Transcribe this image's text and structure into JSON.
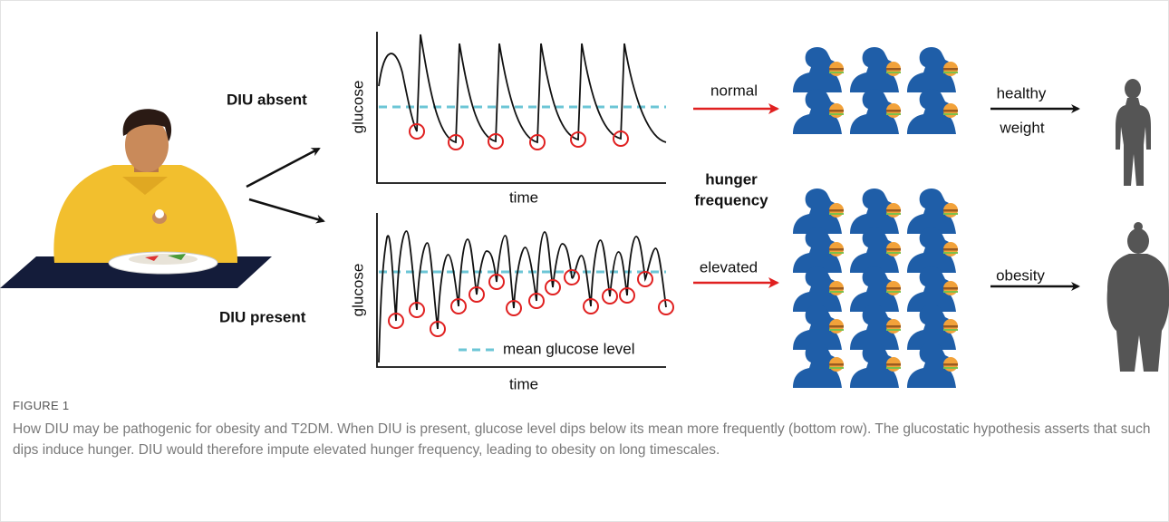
{
  "figure": {
    "labels": {
      "diu_absent": "DIU absent",
      "diu_present": "DIU present",
      "glucose_top": "glucose",
      "glucose_bottom": "glucose",
      "time_top": "time",
      "time_bottom": "time",
      "hunger_1": "hunger",
      "hunger_2": "frequency",
      "normal": "normal",
      "elevated": "elevated",
      "healthy": "healthy",
      "weight": "weight",
      "obesity": "obesity",
      "mean_legend": "mean glucose level"
    },
    "caption": {
      "label": "FIGURE 1",
      "text": "How DIU may be pathogenic for obesity and T2DM. When DIU is present, glucose level dips below its mean more frequently (bottom row). The glucostatic hypothesis asserts that such dips induce hunger. DIU would therefore impute elevated hunger frequency, leading to obesity on long timescales."
    }
  }
}
